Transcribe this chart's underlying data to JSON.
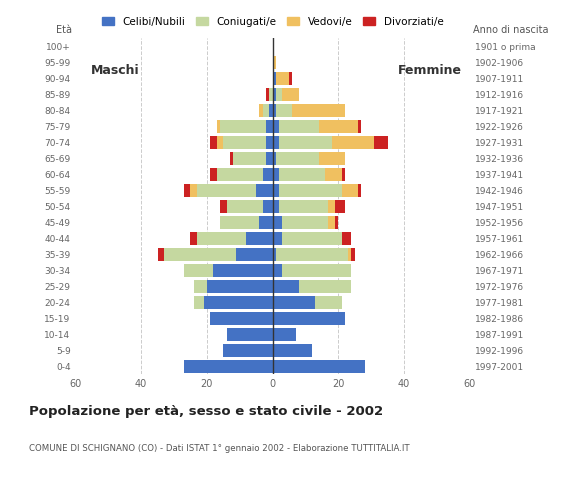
{
  "age_groups": [
    "0-4",
    "5-9",
    "10-14",
    "15-19",
    "20-24",
    "25-29",
    "30-34",
    "35-39",
    "40-44",
    "45-49",
    "50-54",
    "55-59",
    "60-64",
    "65-69",
    "70-74",
    "75-79",
    "80-84",
    "85-89",
    "90-94",
    "95-99",
    "100+"
  ],
  "birth_years": [
    "1997-2001",
    "1992-1996",
    "1987-1991",
    "1982-1986",
    "1977-1981",
    "1972-1976",
    "1967-1971",
    "1962-1966",
    "1957-1961",
    "1952-1956",
    "1947-1951",
    "1942-1946",
    "1937-1941",
    "1932-1936",
    "1927-1931",
    "1922-1926",
    "1917-1921",
    "1912-1916",
    "1907-1911",
    "1902-1906",
    "1901 o prima"
  ],
  "colors": {
    "celibi": "#4472c4",
    "coniugati": "#c5d8a0",
    "vedovi": "#f0c060",
    "divorziati": "#cc2222"
  },
  "males": {
    "celibi": [
      27,
      15,
      14,
      19,
      21,
      20,
      18,
      11,
      8,
      4,
      3,
      5,
      3,
      2,
      2,
      2,
      1,
      0,
      0,
      0,
      0
    ],
    "coniugati": [
      0,
      0,
      0,
      0,
      3,
      4,
      9,
      22,
      15,
      12,
      11,
      18,
      14,
      10,
      13,
      14,
      2,
      1,
      0,
      0,
      0
    ],
    "vedovi": [
      0,
      0,
      0,
      0,
      0,
      0,
      0,
      0,
      0,
      0,
      0,
      2,
      0,
      0,
      2,
      1,
      1,
      0,
      0,
      0,
      0
    ],
    "divorziati": [
      0,
      0,
      0,
      0,
      0,
      0,
      0,
      2,
      2,
      0,
      2,
      2,
      2,
      1,
      2,
      0,
      0,
      1,
      0,
      0,
      0
    ]
  },
  "females": {
    "celibi": [
      28,
      12,
      7,
      22,
      13,
      8,
      3,
      1,
      3,
      3,
      2,
      2,
      2,
      1,
      2,
      2,
      1,
      1,
      1,
      0,
      0
    ],
    "coniugati": [
      0,
      0,
      0,
      0,
      8,
      16,
      21,
      22,
      18,
      14,
      15,
      19,
      14,
      13,
      16,
      12,
      5,
      2,
      0,
      0,
      0
    ],
    "vedovi": [
      0,
      0,
      0,
      0,
      0,
      0,
      0,
      1,
      0,
      2,
      2,
      5,
      5,
      8,
      13,
      12,
      16,
      5,
      4,
      1,
      0
    ],
    "divorziati": [
      0,
      0,
      0,
      0,
      0,
      0,
      0,
      1,
      3,
      1,
      3,
      1,
      1,
      0,
      4,
      1,
      0,
      0,
      1,
      0,
      0
    ]
  },
  "title": "Popolazione per età, sesso e stato civile - 2002",
  "subtitle": "COMUNE DI SCHIGNANO (CO) - Dati ISTAT 1° gennaio 2002 - Elaborazione TUTTITALIA.IT",
  "xlabel_left": "Maschi",
  "xlabel_right": "Femmine",
  "ylabel_left": "Età",
  "ylabel_right": "Anno di nascita",
  "xlim": 60,
  "legend_labels": [
    "Celibi/Nubili",
    "Coniugati/e",
    "Vedovi/e",
    "Divorziati/e"
  ],
  "background_color": "#ffffff"
}
